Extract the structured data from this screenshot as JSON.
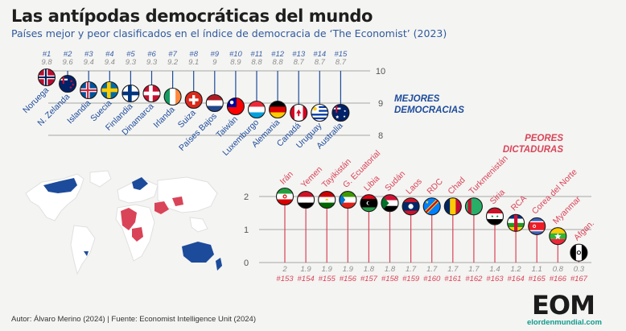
{
  "header": {
    "title": "Las antípodas democráticas del mundo",
    "subtitle": "Países mejor y peor clasificados en el índice de democracia de ‘The Economist’ (2023)"
  },
  "footer": {
    "source": "Autor: Álvaro Merino (2024) | Fuente: Economist Intelligence Unit (2024)"
  },
  "logo": {
    "main": "EOM",
    "sub": "elordenmundial.com"
  },
  "colors": {
    "blue": "#1d4b9b",
    "red": "#d94458",
    "axis_gray": "#8c8c8c",
    "rank_blue": "#3a5fa8",
    "score_gray": "#8e8e8e"
  },
  "chart_data": [
    {
      "type": "lollipop",
      "name": "top",
      "label_lines": [
        "MEJORES",
        "DEMOCRACIAS"
      ],
      "ylim": [
        8,
        10
      ],
      "yticks": [
        8,
        9,
        10
      ],
      "points": [
        {
          "rank": "#1",
          "country": "Noruega",
          "score": 9.8,
          "flag": "norway"
        },
        {
          "rank": "#2",
          "country": "N. Zelanda",
          "score": 9.6,
          "flag": "new-zealand"
        },
        {
          "rank": "#3",
          "country": "Islandia",
          "score": 9.4,
          "flag": "iceland"
        },
        {
          "rank": "#4",
          "country": "Suecia",
          "score": 9.4,
          "flag": "sweden"
        },
        {
          "rank": "#5",
          "country": "Finlandia",
          "score": 9.3,
          "flag": "finland"
        },
        {
          "rank": "#6",
          "country": "Dinamarca",
          "score": 9.3,
          "flag": "denmark"
        },
        {
          "rank": "#7",
          "country": "Irlanda",
          "score": 9.2,
          "flag": "ireland"
        },
        {
          "rank": "#8",
          "country": "Suiza",
          "score": 9.1,
          "flag": "switzerland"
        },
        {
          "rank": "#9",
          "country": "Países Bajos",
          "score": 9.0,
          "score_label": "9",
          "flag": "netherlands"
        },
        {
          "rank": "#10",
          "country": "Taiwán",
          "score": 8.9,
          "flag": "taiwan"
        },
        {
          "rank": "#11",
          "country": "Luxemburgo",
          "score": 8.8,
          "flag": "luxembourg"
        },
        {
          "rank": "#12",
          "country": "Alemania",
          "score": 8.8,
          "flag": "germany"
        },
        {
          "rank": "#13",
          "country": "Canadá",
          "score": 8.7,
          "flag": "canada"
        },
        {
          "rank": "#14",
          "country": "Uruguay",
          "score": 8.7,
          "flag": "uruguay"
        },
        {
          "rank": "#15",
          "country": "Australia",
          "score": 8.7,
          "flag": "australia"
        }
      ]
    },
    {
      "type": "lollipop",
      "name": "bottom",
      "label_lines": [
        "PEORES",
        "DICTADURAS"
      ],
      "ylim": [
        0,
        2
      ],
      "yticks": [
        0,
        1,
        2
      ],
      "points": [
        {
          "rank": "#153",
          "country": "Irán",
          "score": 2.0,
          "score_label": "2",
          "flag": "iran"
        },
        {
          "rank": "#154",
          "country": "Yemen",
          "score": 1.9,
          "flag": "yemen"
        },
        {
          "rank": "#155",
          "country": "Tayikistán",
          "score": 1.9,
          "flag": "tajikistan"
        },
        {
          "rank": "#156",
          "country": "G. Ecuatorial",
          "score": 1.9,
          "flag": "eq-guinea"
        },
        {
          "rank": "#157",
          "country": "Libia",
          "score": 1.8,
          "flag": "libya"
        },
        {
          "rank": "#158",
          "country": "Sudán",
          "score": 1.8,
          "flag": "sudan"
        },
        {
          "rank": "#159",
          "country": "Laos",
          "score": 1.7,
          "flag": "laos"
        },
        {
          "rank": "#160",
          "country": "RDC",
          "score": 1.7,
          "flag": "drc"
        },
        {
          "rank": "#161",
          "country": "Chad",
          "score": 1.7,
          "flag": "chad"
        },
        {
          "rank": "#162",
          "country": "Turkmenistán",
          "score": 1.7,
          "flag": "turkmenistan"
        },
        {
          "rank": "#163",
          "country": "Siria",
          "score": 1.4,
          "flag": "syria"
        },
        {
          "rank": "#164",
          "country": "RCA",
          "score": 1.2,
          "flag": "car"
        },
        {
          "rank": "#165",
          "country": "Corea del Norte",
          "score": 1.1,
          "flag": "north-korea"
        },
        {
          "rank": "#166",
          "country": "Myanmar",
          "score": 0.8,
          "flag": "myanmar"
        },
        {
          "rank": "#167",
          "country": "Afgan.",
          "score": 0.3,
          "flag": "afghanistan"
        }
      ]
    }
  ]
}
